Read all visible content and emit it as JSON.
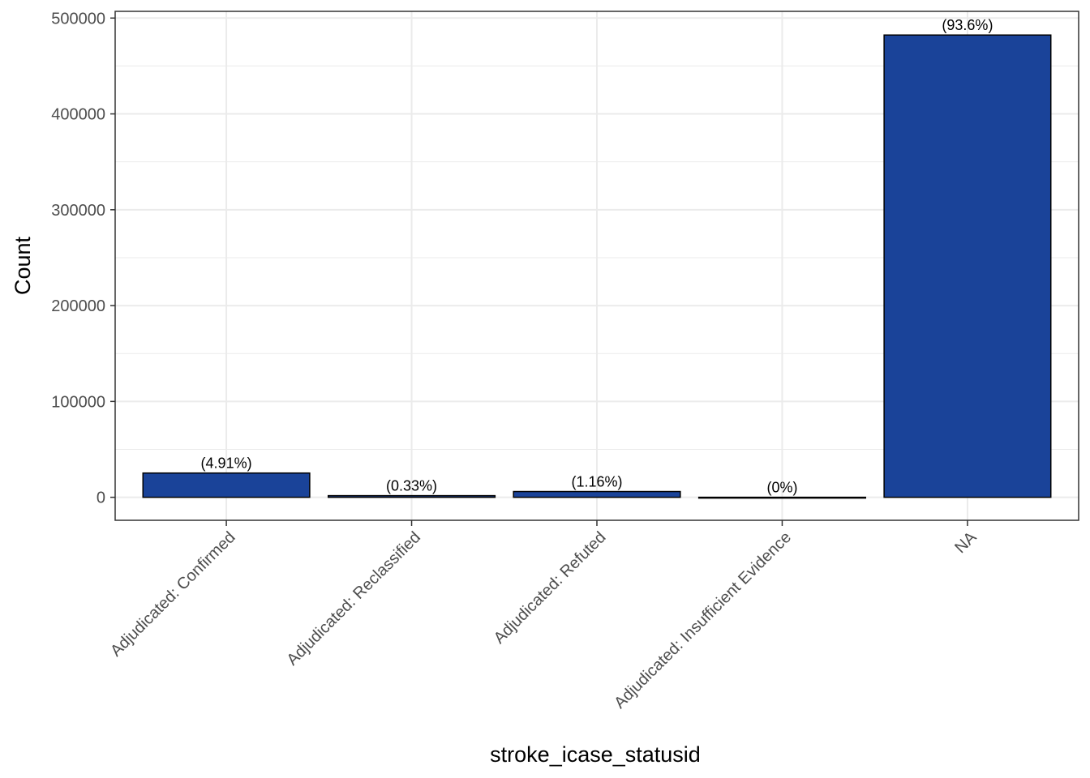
{
  "chart_data": {
    "type": "bar",
    "categories": [
      "Adjudicated: Confirmed",
      "Adjudicated: Reclassified",
      "Adjudicated: Refuted",
      "Adjudicated: Insufficient Evidence",
      "NA"
    ],
    "values": [
      25300,
      1700,
      6000,
      10,
      482300
    ],
    "bar_labels": [
      "(4.91%)",
      "(0.33%)",
      "(1.16%)",
      "(0%)",
      "(93.6%)"
    ],
    "title": "",
    "xlabel": "stroke_icase_statusid",
    "ylabel": "Count",
    "ylim": [
      -24000,
      507000
    ],
    "yticks": [
      0,
      100000,
      200000,
      300000,
      400000,
      500000
    ],
    "ytick_labels": [
      "0",
      "100000",
      "200000",
      "300000",
      "400000",
      "500000"
    ],
    "grid": true,
    "legend": "none",
    "colors": {
      "bar_fill": "#1a4399",
      "bar_outline": "#000000",
      "grid": "#ebebeb",
      "panel_border": "#333333"
    }
  }
}
